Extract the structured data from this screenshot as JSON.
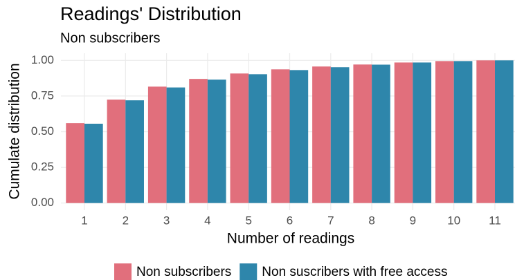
{
  "chart_data": {
    "type": "bar",
    "title": "Readings' Distribution",
    "subtitle": "Non subscribers",
    "x_label": "Number of readings",
    "y_label": "Cumulate distribution",
    "categories": [
      "1",
      "2",
      "3",
      "4",
      "5",
      "6",
      "7",
      "8",
      "9",
      "10",
      "11"
    ],
    "series": [
      {
        "name": "Non subscribers",
        "color": "#e16f7c",
        "values": [
          0.56,
          0.725,
          0.816,
          0.87,
          0.908,
          0.937,
          0.957,
          0.971,
          0.985,
          0.995,
          1.0
        ]
      },
      {
        "name": "Non suscribers with free access",
        "color": "#2e86ab",
        "values": [
          0.556,
          0.72,
          0.81,
          0.865,
          0.903,
          0.932,
          0.952,
          0.97,
          0.985,
          0.995,
          1.0
        ]
      }
    ],
    "ylim": [
      -0.05,
      1.05
    ],
    "yticks": [
      {
        "value": 0,
        "label": "0.00"
      },
      {
        "value": 0.25,
        "label": "0.25"
      },
      {
        "value": 0.5,
        "label": "0.50"
      },
      {
        "value": 0.75,
        "label": "0.75"
      },
      {
        "value": 1,
        "label": "1.00"
      }
    ],
    "grid": true,
    "legend": "bottom"
  }
}
